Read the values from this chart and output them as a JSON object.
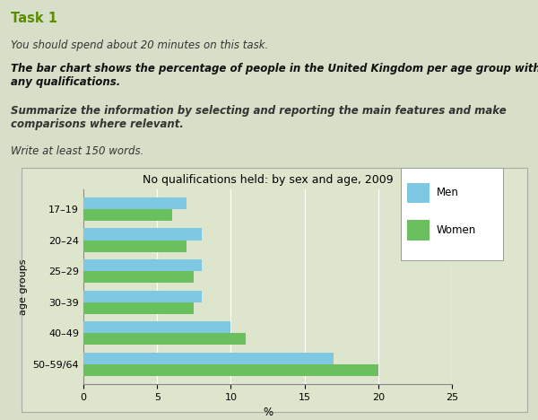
{
  "title": "No qualifications held: by sex and age, 2009",
  "categories": [
    "50–59/64",
    "40–49",
    "30–39",
    "25–29",
    "20–24",
    "17–19"
  ],
  "men_values": [
    17,
    10,
    8,
    8,
    8,
    7
  ],
  "women_values": [
    20,
    11,
    7.5,
    7.5,
    7,
    6
  ],
  "men_color": "#7ec8e3",
  "women_color": "#6abf5e",
  "xlabel": "%",
  "ylabel": "age groups",
  "xlim": [
    0,
    25
  ],
  "xticks": [
    0,
    5,
    10,
    15,
    20,
    25
  ],
  "page_bg_color": "#d8dfc8",
  "chart_bg_color": "#dde5cc",
  "chart_border_color": "#aaaaaa",
  "title_fontsize": 9,
  "bar_height": 0.38,
  "legend_men": "Men",
  "legend_women": "Women",
  "header_text_color": "#333333",
  "task_color": "#5c8c00",
  "grid_color": "#bbbbbb"
}
